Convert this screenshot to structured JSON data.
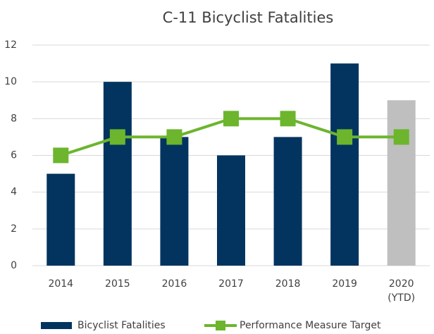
{
  "chart_data": {
    "type": "bar",
    "title": "C-11 Bicyclist Fatalities",
    "categories": [
      "2014",
      "2015",
      "2016",
      "2017",
      "2018",
      "2019",
      "2020 (YTD)"
    ],
    "series": [
      {
        "name": "Bicyclist Fatalities",
        "type": "bar",
        "color": "#02345f",
        "colors": [
          "#02345f",
          "#02345f",
          "#02345f",
          "#02345f",
          "#02345f",
          "#02345f",
          "#bfbfbf"
        ],
        "values": [
          5,
          10,
          7,
          6,
          7,
          11,
          9
        ]
      },
      {
        "name": "Performance Measure Target",
        "type": "line",
        "color": "#6cb52d",
        "values": [
          6,
          7,
          7,
          8,
          8,
          7,
          7
        ]
      }
    ],
    "ylim": [
      0,
      12
    ],
    "yticks": [
      0,
      2,
      4,
      6,
      8,
      10,
      12
    ],
    "grid": true,
    "legend": "bottom"
  }
}
